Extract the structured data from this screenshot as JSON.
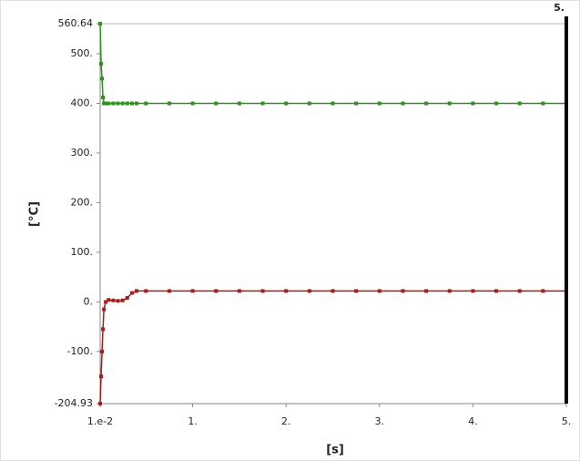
{
  "chart_data": {
    "type": "line",
    "x_label": "[s]",
    "y_label": "[°C]",
    "x": [
      0.01,
      0.02,
      0.03,
      0.04,
      0.05,
      0.07,
      0.1,
      0.15,
      0.2,
      0.25,
      0.3,
      0.35,
      0.4,
      0.5,
      0.75,
      1,
      1.25,
      1.5,
      1.75,
      2,
      2.25,
      2.5,
      2.75,
      3,
      3.25,
      3.5,
      3.75,
      4,
      4.25,
      4.5,
      4.75,
      5
    ],
    "series": [
      {
        "color": "#2f8f1f",
        "values": [
          560.64,
          480,
          450,
          412,
          400,
          400,
          400,
          400,
          400,
          400,
          400,
          400,
          400,
          400,
          400,
          400,
          400,
          400,
          400,
          400,
          400,
          400,
          400,
          400,
          400,
          400,
          400,
          400,
          400,
          400,
          400,
          400
        ]
      },
      {
        "color": "#a51d1d",
        "values": [
          -204.93,
          -150,
          -100,
          -55,
          -15,
          0,
          4,
          3,
          2,
          3,
          8,
          18,
          22,
          22,
          22,
          22,
          22,
          22,
          22,
          22,
          22,
          22,
          22,
          22,
          22,
          22,
          22,
          22,
          22,
          22,
          22,
          22
        ]
      }
    ],
    "xlim": [
      0.01,
      5
    ],
    "ylim": [
      -204.93,
      560.64
    ],
    "xticks": [
      {
        "value": 0.01,
        "label": "1.e-2"
      },
      {
        "value": 1,
        "label": "1."
      },
      {
        "value": 2,
        "label": "2."
      },
      {
        "value": 3,
        "label": "3."
      },
      {
        "value": 4,
        "label": "4."
      },
      {
        "value": 5,
        "label": "5."
      }
    ],
    "yticks": [
      -204.93,
      {
        "value": -100,
        "label": "-100."
      },
      {
        "value": 0,
        "label": "0."
      },
      {
        "value": 100,
        "label": "100."
      },
      {
        "value": 200,
        "label": "200."
      },
      {
        "value": 300,
        "label": "300."
      },
      {
        "value": 400,
        "label": "400."
      },
      {
        "value": 500,
        "label": "500."
      },
      560.64
    ],
    "marker_line": {
      "value": 5,
      "label": "5.",
      "color": "#000000"
    },
    "grid": false
  }
}
